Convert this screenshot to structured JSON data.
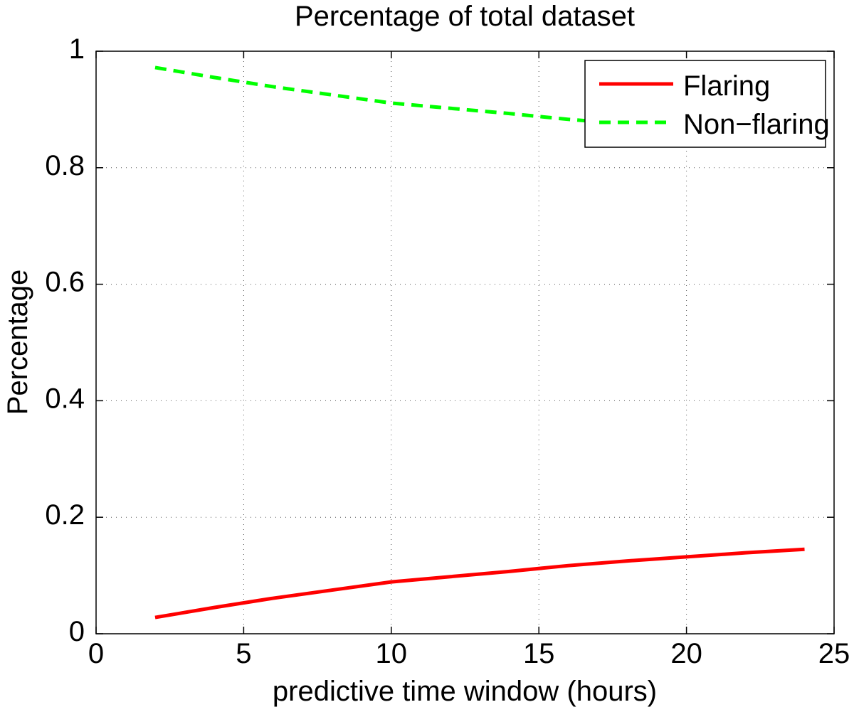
{
  "chart_data": {
    "type": "line",
    "title": "Percentage of total dataset",
    "xlabel": "predictive time window (hours)",
    "ylabel": "Percentage",
    "xlim": [
      0,
      25
    ],
    "ylim": [
      0,
      1
    ],
    "xticks": [
      "0",
      "5",
      "10",
      "15",
      "20",
      "25"
    ],
    "yticks": [
      "0",
      "0.2",
      "0.4",
      "0.6",
      "0.8",
      "1"
    ],
    "grid": true,
    "legend_position": "top-right",
    "x": [
      2,
      4,
      6,
      8,
      10,
      12,
      14,
      16,
      18,
      20,
      22,
      24
    ],
    "series": [
      {
        "name": "Flaring",
        "color": "#ff0000",
        "style": "solid",
        "values": [
          0.028,
          0.045,
          0.061,
          0.075,
          0.089,
          0.098,
          0.107,
          0.117,
          0.125,
          0.132,
          0.139,
          0.145
        ]
      },
      {
        "name": "Non−flaring",
        "color": "#00ff00",
        "style": "dashed",
        "values": [
          0.972,
          0.955,
          0.939,
          0.925,
          0.911,
          0.902,
          0.893,
          0.883,
          0.875,
          0.868,
          0.861,
          0.855
        ]
      }
    ]
  }
}
